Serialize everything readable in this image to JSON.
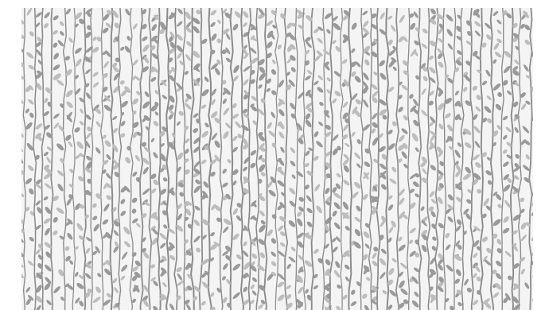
{
  "image": {
    "subject": "vertical-vine-leaf-pattern",
    "colors": {
      "page_background": "#ffffff",
      "pattern_background": "#f4f4f4",
      "stem": "#8a8a8a",
      "leaf_dark": "#9a9a9a",
      "leaf_light": "#bdbdbd"
    }
  }
}
